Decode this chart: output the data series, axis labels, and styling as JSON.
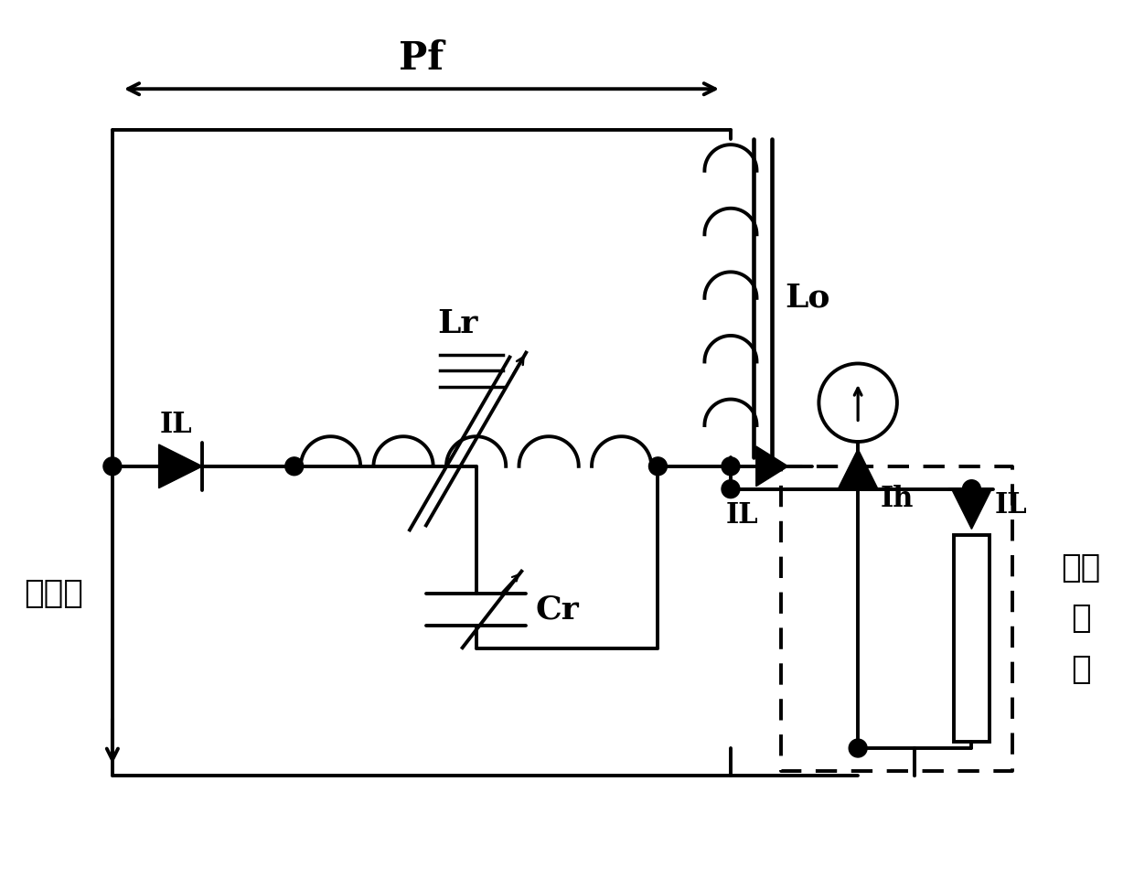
{
  "bg_color": "#ffffff",
  "line_color": "#000000",
  "line_width": 2.8,
  "label_Pf": "Pf",
  "label_Lr": "Lr",
  "label_Lo": "Lo",
  "label_Cr": "Cr",
  "label_IL_left": "IL",
  "label_IL_right": "IL",
  "label_IL_box": "IL",
  "label_Ih": "Ih",
  "label_grid": "电网侧",
  "label_load": "用户\n负\n载",
  "font_size": 26,
  "font_size_label": 22
}
